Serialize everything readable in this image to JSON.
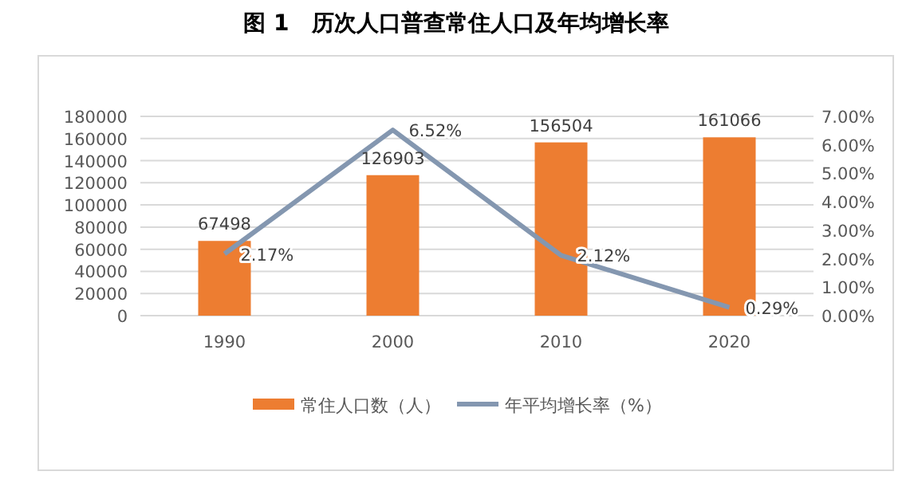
{
  "chart_data": {
    "type": "bar",
    "title": "图 1　历次人口普查常住人口及年均增长率",
    "categories": [
      "1990",
      "2000",
      "2010",
      "2020"
    ],
    "series": [
      {
        "name": "常住人口数（人）",
        "color": "#ed7d31",
        "values": [
          67498,
          126903,
          156504,
          161066
        ],
        "value_labels": [
          "67498",
          "126903",
          "156504",
          "161066"
        ]
      },
      {
        "name": "年平均增长率（%）",
        "type": "line",
        "axis": "y2",
        "color": "#8497b0",
        "values": [
          2.17,
          6.52,
          2.12,
          0.29
        ],
        "value_labels": [
          "2.17%",
          "6.52%",
          "2.12%",
          "0.29%"
        ]
      }
    ],
    "ylim": [
      0,
      180000
    ],
    "yticks": [
      0,
      20000,
      40000,
      60000,
      80000,
      100000,
      120000,
      140000,
      160000,
      180000
    ],
    "y2lim": [
      0,
      7
    ],
    "y2ticks": [
      {
        "value": 0,
        "label": "0.00%"
      },
      {
        "value": 1,
        "label": "1.00%"
      },
      {
        "value": 2,
        "label": "2.00%"
      },
      {
        "value": 3,
        "label": "3.00%"
      },
      {
        "value": 4,
        "label": "4.00%"
      },
      {
        "value": 5,
        "label": "5.00%"
      },
      {
        "value": 6,
        "label": "6.00%"
      },
      {
        "value": 7,
        "label": "7.00%"
      }
    ],
    "grid": "y",
    "legend": "bottom"
  }
}
